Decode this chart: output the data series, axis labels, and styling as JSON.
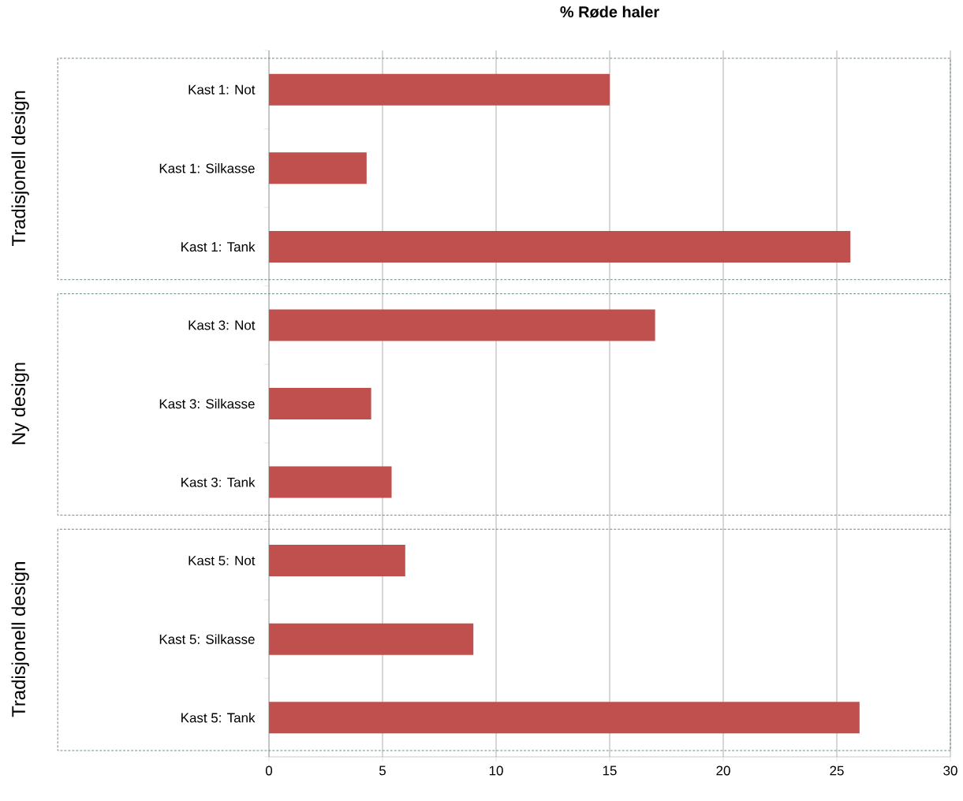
{
  "chart_data": {
    "type": "bar",
    "orientation": "horizontal",
    "title": "% Røde haler",
    "categories": [
      "Kast 1: Not",
      "Kast 1: Silkasse",
      "Kast 1: Tank",
      "Kast 3: Not",
      "Kast 3: Silkasse",
      "Kast 3: Tank",
      "Kast 5: Not",
      "Kast 5: Silkasse",
      "Kast 5: Tank"
    ],
    "values": [
      15,
      4.3,
      25.6,
      17,
      4.5,
      5.4,
      6,
      9,
      26
    ],
    "color": "#c0504d",
    "xlim": [
      0,
      30
    ],
    "xticks": [
      0,
      5,
      10,
      15,
      20,
      25,
      30
    ],
    "grid": "x",
    "annotations": [
      "Tradisjonell design",
      "Ny design",
      "Tradisjonell design"
    ]
  }
}
